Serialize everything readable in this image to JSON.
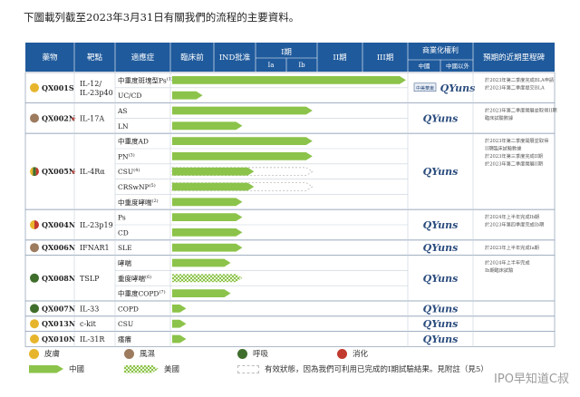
{
  "intro": "下圖載列截至2023年3月31日有關我們的流程的主要資料。",
  "header": {
    "drug": "藥物",
    "target": "靶點",
    "indication": "適應症",
    "preclinical": "臨床前",
    "ind": "IND批准",
    "phase1": "I期",
    "phase1a": "Ia",
    "phase1b": "Ib",
    "phase2": "II期",
    "phase3": "III期",
    "commercial": "商業化權利",
    "china": "中國",
    "outside_china": "中國以外",
    "milestones": "預期的近期里程碑"
  },
  "colors": {
    "header_bg": "#1f5a9c",
    "header_text": "#ffffff",
    "china_arrow": "#8cc34a",
    "derm": "#e7b52c",
    "rheum": "#9c7b5e",
    "resp": "#3f6e2c",
    "digest": "#c23a2e",
    "star": "#c23a2e"
  },
  "drugs": [
    {
      "name": "QX001S",
      "target": "IL-12/\nIL-23p40",
      "star": false,
      "dot": [
        "derm"
      ],
      "indications": [
        {
          "label": "中重度斑塊型Ps",
          "sup": "(1)",
          "progress": 1.0,
          "kind": "china"
        },
        {
          "label": "UC/CD",
          "progress": 0.13,
          "kind": "china"
        }
      ],
      "partner": "中美華東",
      "milestones": [
        "於2023年第二季度完成BLA申請",
        "於2023年第二季度提交BLA"
      ]
    },
    {
      "name": "QX002N",
      "target": "IL-17A",
      "star": true,
      "dot": [
        "rheum"
      ],
      "indications": [
        {
          "label": "AS",
          "progress": 0.6,
          "kind": "china"
        },
        {
          "label": "LN",
          "progress": 0.3,
          "kind": "china"
        }
      ],
      "milestones": [
        "於2023年第二季度開展並取得II期",
        "臨床試驗數據"
      ]
    },
    {
      "name": "QX005N",
      "target": "IL-4Rα",
      "star": true,
      "dot": [
        "derm",
        "resp",
        "digest"
      ],
      "indications": [
        {
          "label": "中重度AD",
          "progress": 0.6,
          "kind": "china"
        },
        {
          "label": "PN",
          "sup": "(3)",
          "progress": 0.6,
          "kind": "china"
        },
        {
          "label": "CSU",
          "sup": "(4)",
          "progress": 0.35,
          "kind": "china",
          "pending": 0.6
        },
        {
          "label": "CRSwNP",
          "sup": "(5)",
          "progress": 0.35,
          "kind": "china",
          "pending": 0.6
        },
        {
          "label": "中重度哮喘",
          "sup": "(2)",
          "progress": 0.3,
          "kind": "china"
        }
      ],
      "milestones": [
        "於2023年第二季度開展並取得",
        "II期臨床試驗數據",
        "於2023年第三季度完成II期",
        "於2023年第二季度開展II期"
      ]
    },
    {
      "name": "QX004N",
      "target": "IL-23p19",
      "star": false,
      "dot": [
        "derm",
        "digest"
      ],
      "indications": [
        {
          "label": "Ps",
          "progress": 0.3,
          "kind": "china"
        },
        {
          "label": "CD",
          "progress": 0.3,
          "kind": "china"
        }
      ],
      "milestones": [
        "於2024年上半年完成Ib期",
        "於2023年第四季度完成Ib期"
      ]
    },
    {
      "name": "QX006N",
      "target": "IFNAR1",
      "star": false,
      "dot": [
        "rheum"
      ],
      "indications": [
        {
          "label": "SLE",
          "progress": 0.3,
          "kind": "china"
        }
      ],
      "milestones": [
        "於2023年上半年完成Ia期"
      ]
    },
    {
      "name": "QX008N",
      "target": "TSLP",
      "star": false,
      "dot": [
        "resp"
      ],
      "indications": [
        {
          "label": "哮喘",
          "progress": 0.25,
          "kind": "china"
        },
        {
          "label": "重度哮喘",
          "sup": "(6)",
          "progress": 0.3,
          "kind": "us"
        },
        {
          "label": "中重度COPD",
          "sup": "(7)",
          "progress": 0.25,
          "kind": "china"
        }
      ],
      "milestones": [
        "於2024年上半年完成",
        "Ib期臨床試驗"
      ]
    },
    {
      "name": "QX007N",
      "target": "IL-33",
      "star": false,
      "dot": [
        "resp"
      ],
      "indications": [
        {
          "label": "COPD",
          "progress": 0.06,
          "kind": "china"
        }
      ],
      "milestones": []
    },
    {
      "name": "QX013N",
      "target": "c-kit",
      "star": false,
      "dot": [
        "derm"
      ],
      "indications": [
        {
          "label": "CSU",
          "progress": 0.06,
          "kind": "china"
        }
      ],
      "milestones": []
    },
    {
      "name": "QX010N",
      "target": "IL-31R",
      "star": false,
      "dot": [
        "derm"
      ],
      "indications": [
        {
          "label": "瘙癢",
          "progress": 0.06,
          "kind": "china"
        }
      ],
      "milestones": []
    }
  ],
  "logo_text": "QYuns",
  "legend": {
    "derm": "皮膚",
    "rheum": "風濕",
    "resp": "呼吸",
    "digest": "消化",
    "china": "中國",
    "us": "美國",
    "note": "有效狀態，因為我們可利用已完成的I期試驗結果。見附註（見5）"
  },
  "watermark": "IPO早知道C叔"
}
